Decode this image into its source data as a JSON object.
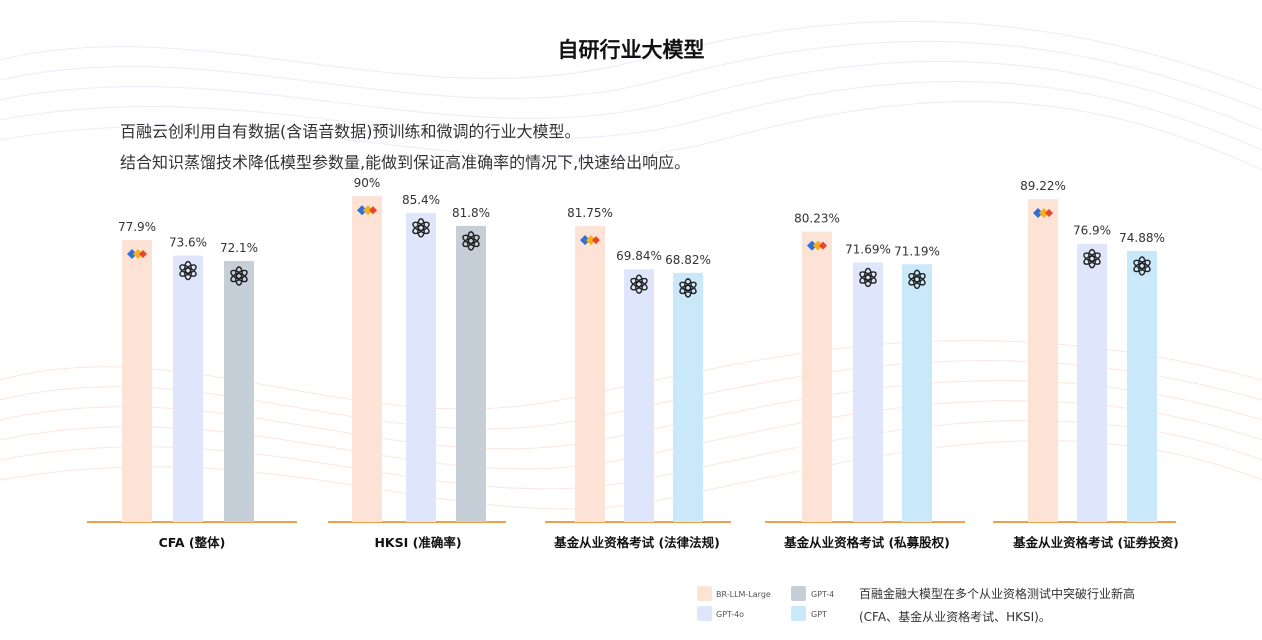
{
  "page": {
    "title": "自研行业大模型",
    "intro_line1": "百融云创利用自有数据(含语音数据)预训练和微调的行业大模型。",
    "intro_line2": "结合知识蒸馏技术降低模型参数量,能做到保证高准确率的情况下,快速给出响应。"
  },
  "chart_data": {
    "type": "bar",
    "categories": [
      "CFA (整体)",
      "HKSI (准确率)",
      "基金从业资格考试 (法律法规)",
      "基金从业资格考试 (私募股权)",
      "基金从业资格考试 (证券投资)"
    ],
    "ylim": [
      0,
      100
    ],
    "groups": [
      {
        "category": "CFA (整体)",
        "bars": [
          {
            "model": "BR-LLM-Large",
            "value": 77.9,
            "label": "77.9%"
          },
          {
            "model": "GPT-4o",
            "value": 73.6,
            "label": "73.6%"
          },
          {
            "model": "GPT-4",
            "value": 72.1,
            "label": "72.1%"
          }
        ]
      },
      {
        "category": "HKSI (准确率)",
        "bars": [
          {
            "model": "BR-LLM-Large",
            "value": 90,
            "label": "90%"
          },
          {
            "model": "GPT-4o",
            "value": 85.4,
            "label": "85.4%"
          },
          {
            "model": "GPT-4",
            "value": 81.8,
            "label": "81.8%"
          }
        ]
      },
      {
        "category": "基金从业资格考试 (法律法规)",
        "bars": [
          {
            "model": "BR-LLM-Large",
            "value": 81.75,
            "label": "81.75%"
          },
          {
            "model": "GPT-4o",
            "value": 69.84,
            "label": "69.84%"
          },
          {
            "model": "GPT",
            "value": 68.82,
            "label": "68.82%"
          }
        ]
      },
      {
        "category": "基金从业资格考试 (私募股权)",
        "bars": [
          {
            "model": "BR-LLM-Large",
            "value": 80.23,
            "label": "80.23%"
          },
          {
            "model": "GPT-4o",
            "value": 71.69,
            "label": "71.69%"
          },
          {
            "model": "GPT",
            "value": 71.19,
            "label": "71.19%"
          }
        ]
      },
      {
        "category": "基金从业资格考试 (证券投资)",
        "bars": [
          {
            "model": "BR-LLM-Large",
            "value": 89.22,
            "label": "89.22%"
          },
          {
            "model": "GPT-4o",
            "value": 76.9,
            "label": "76.9%"
          },
          {
            "model": "GPT",
            "value": 74.88,
            "label": "74.88%"
          }
        ]
      }
    ],
    "legend": [
      {
        "name": "BR-LLM-Large",
        "color": "#fde3d6"
      },
      {
        "name": "GPT-4",
        "color": "#c6ced7"
      },
      {
        "name": "GPT-4o",
        "color": "#dfe6fb"
      },
      {
        "name": "GPT",
        "color": "#c9e9fb"
      }
    ],
    "colors": {
      "BR-LLM-Large": "#fde3d6",
      "GPT-4o": "#dfe6fb",
      "GPT-4": "#c6ced7",
      "GPT": "#c9e9fb",
      "baseline": "#f0a04b"
    },
    "legend_position": "bottom-right"
  },
  "note": {
    "line1": "百融金融大模型在多个从业资格测试中突破行业新高",
    "line2": "(CFA、基金从业资格考试、HKSI)。"
  }
}
